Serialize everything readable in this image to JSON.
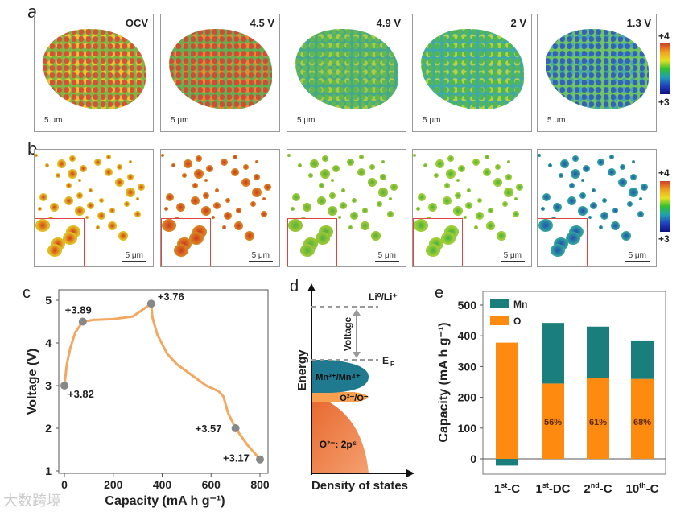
{
  "panel_a": {
    "label": "a",
    "images": [
      {
        "title": "OCV",
        "scale": "5 μm"
      },
      {
        "title": "4.5 V",
        "scale": "5 μm"
      },
      {
        "title": "4.9 V",
        "scale": "5 μm"
      },
      {
        "title": "2 V",
        "scale": "5 μm"
      },
      {
        "title": "1.3 V",
        "scale": "5 μm"
      }
    ],
    "colorbar": {
      "max": "+4",
      "min": "+3"
    }
  },
  "panel_b": {
    "label": "b",
    "scale": "5 μm",
    "colorbar": {
      "max": "+4",
      "min": "+3"
    }
  },
  "watermark": "大数跨境",
  "chart_data": [
    {
      "panel": "c",
      "type": "line",
      "xlabel": "Capacity (mA h g⁻¹)",
      "ylabel": "Voltage (V)",
      "xlim": [
        0,
        800
      ],
      "ylim": [
        1,
        5
      ],
      "xticks": [
        "0",
        "200",
        "400",
        "600",
        "800"
      ],
      "yticks": [
        "1",
        "2",
        "3",
        "4",
        "5"
      ],
      "series": [
        {
          "name": "voltage profile",
          "color": "#f2a860",
          "x": [
            0,
            10,
            25,
            45,
            75,
            120,
            200,
            280,
            320,
            355,
            360,
            380,
            420,
            460,
            520,
            580,
            630,
            650,
            670,
            700,
            750,
            800
          ],
          "y": [
            3.0,
            3.5,
            3.9,
            4.25,
            4.5,
            4.54,
            4.56,
            4.62,
            4.78,
            4.92,
            4.6,
            4.2,
            3.75,
            3.5,
            3.25,
            3.0,
            2.87,
            2.75,
            2.35,
            2.0,
            1.6,
            1.27
          ]
        }
      ],
      "markers": [
        {
          "x": 0,
          "y": 3.0,
          "label": "+3.82"
        },
        {
          "x": 75,
          "y": 4.5,
          "label": "+3.89"
        },
        {
          "x": 355,
          "y": 4.92,
          "label": "+3.76"
        },
        {
          "x": 700,
          "y": 2.0,
          "label": "+3.57"
        },
        {
          "x": 800,
          "y": 1.27,
          "label": "+3.17"
        }
      ]
    },
    {
      "panel": "e",
      "type": "bar",
      "stacked": true,
      "ylabel": "Capacity (mA h g⁻¹)",
      "ylim": [
        -50,
        550
      ],
      "yticks": [
        "0",
        "100",
        "200",
        "300",
        "400",
        "500"
      ],
      "categories": [
        {
          "base": "1",
          "sup": "st",
          "rest": "-C"
        },
        {
          "base": "1",
          "sup": "st",
          "rest": "-DC"
        },
        {
          "base": "2",
          "sup": "nd",
          "rest": "-C"
        },
        {
          "base": "10",
          "sup": "th",
          "rest": "-C"
        }
      ],
      "series": [
        {
          "name": "O",
          "color": "#ff8a10",
          "values": [
            378,
            245,
            262,
            260
          ]
        },
        {
          "name": "Mn",
          "color": "#1a7f7c",
          "values": [
            -22,
            197,
            168,
            125
          ]
        }
      ],
      "bar_labels": [
        "",
        "56%",
        "61%",
        "68%"
      ],
      "legend": "top-left"
    }
  ],
  "panel_d": {
    "label": "d",
    "ylabel": "Energy",
    "xlabel": "Density of states",
    "li_level": "Li⁰/Li⁺",
    "fermi": "E",
    "fermi_sub": "F",
    "voltage": "Voltage",
    "band_mn": "Mn³⁺/Mn⁴⁺",
    "band_o_hole": "O²⁻/O⁻",
    "band_o": "O²⁻: 2p⁶"
  }
}
